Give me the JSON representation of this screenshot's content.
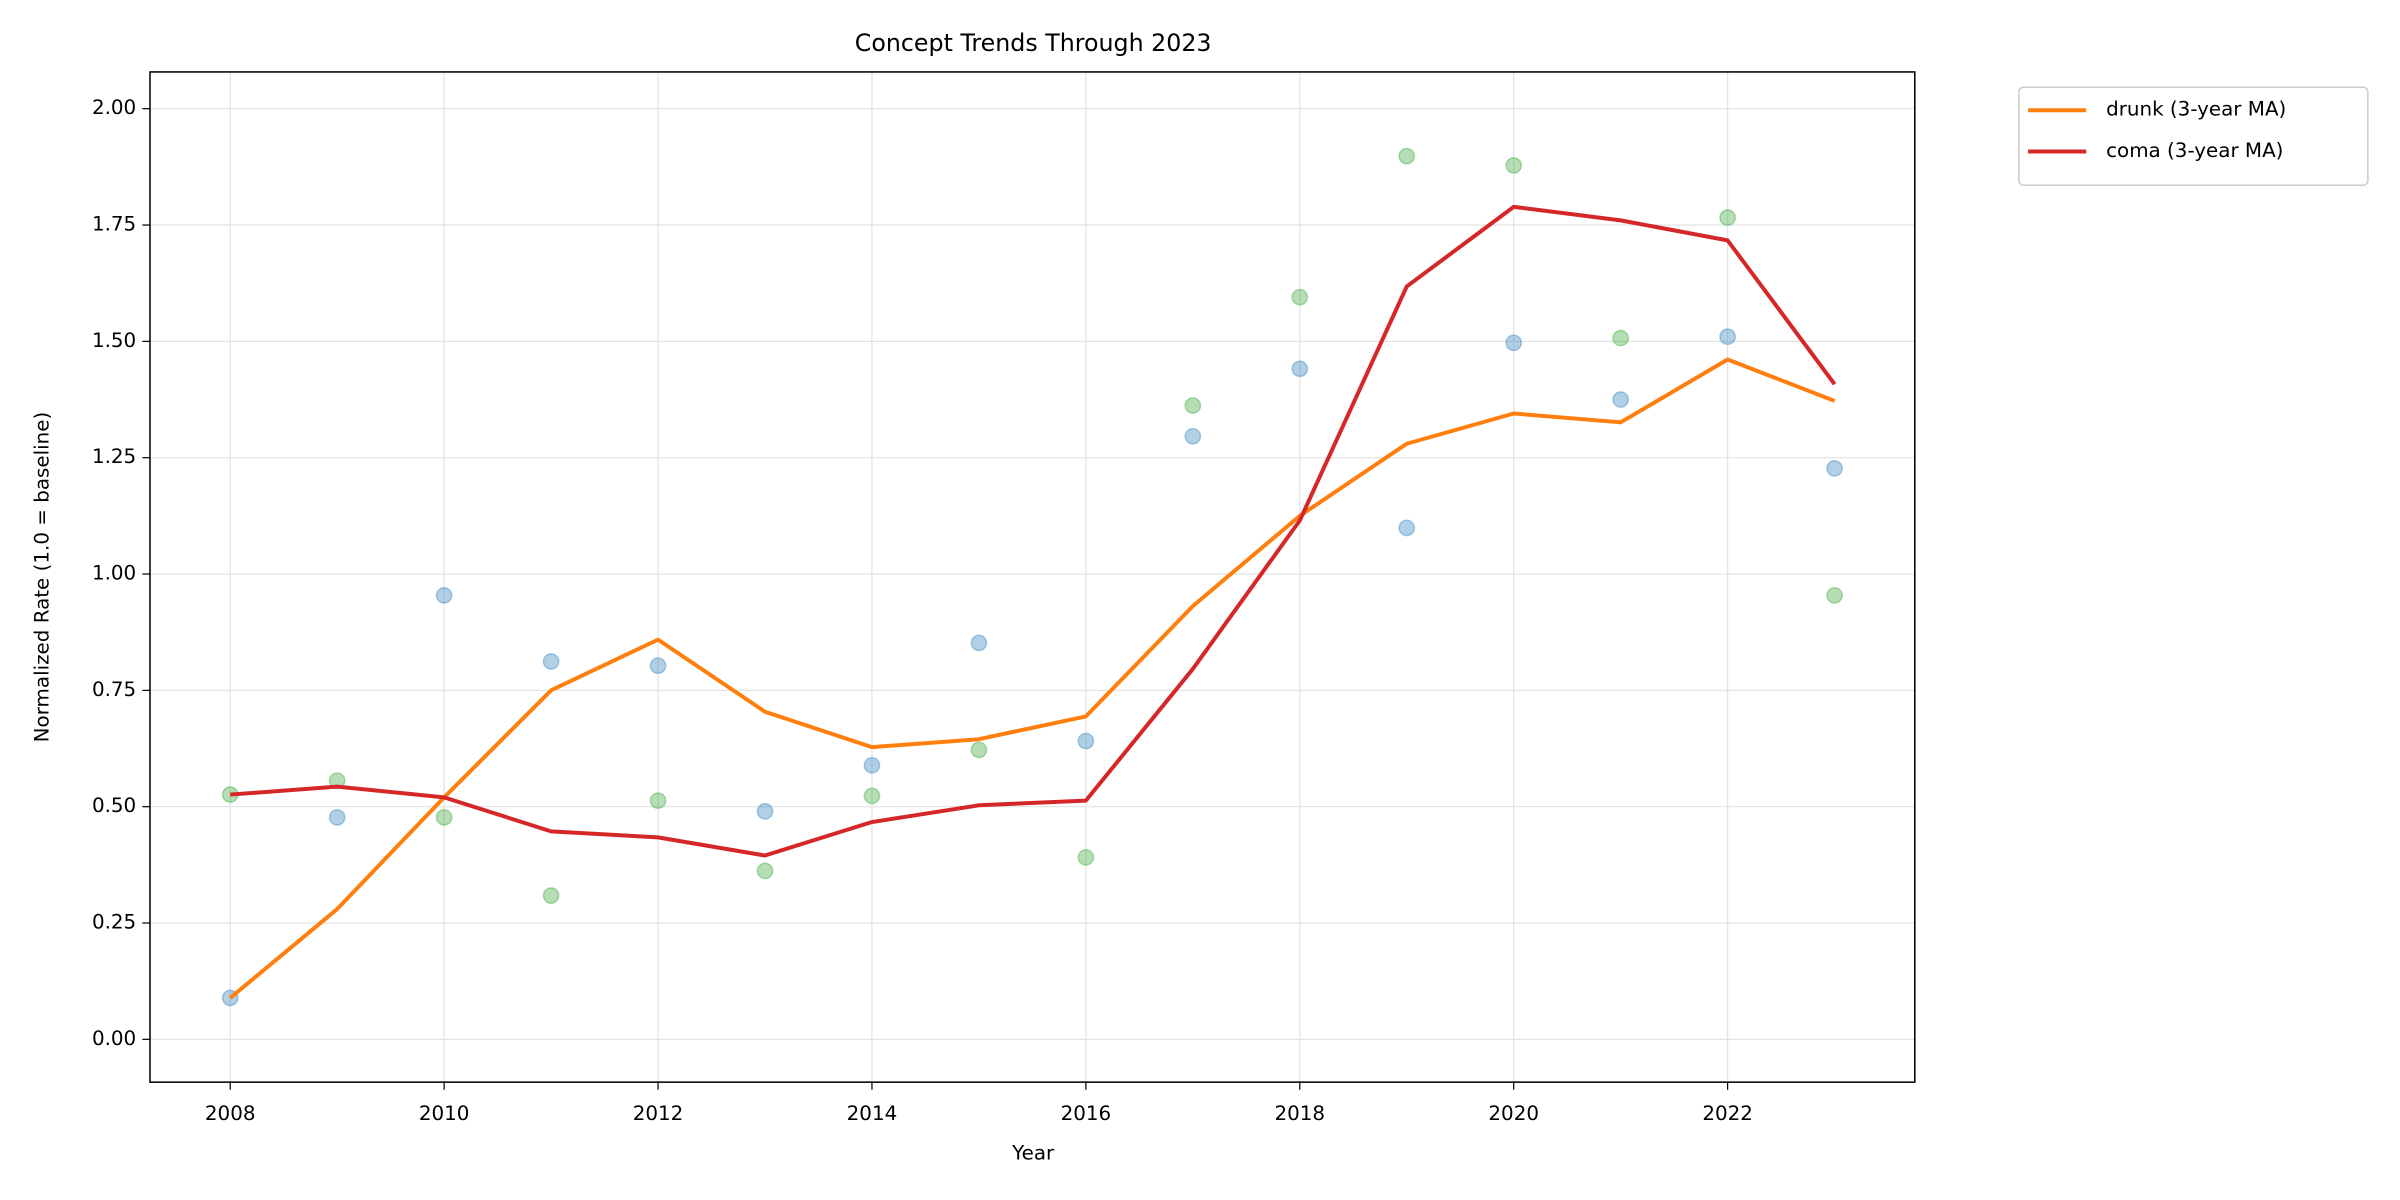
{
  "chart_data": {
    "type": "line",
    "title": "Concept Trends Through 2023",
    "x_label": "Year",
    "y_label": "Normalized Rate (1.0 = baseline)",
    "x": [
      2008,
      2009,
      2010,
      2011,
      2012,
      2013,
      2014,
      2015,
      2016,
      2017,
      2018,
      2019,
      2020,
      2021,
      2022,
      2023
    ],
    "series": [
      {
        "style": "markers",
        "color": "#1f77b4",
        "values": [
          0.089,
          0.477,
          0.954,
          0.812,
          0.803,
          0.49,
          0.589,
          0.852,
          0.641,
          1.296,
          1.441,
          1.099,
          1.497,
          1.375,
          1.51,
          1.227
        ]
      },
      {
        "style": "markers",
        "color": "#2ca02c",
        "values": [
          0.526,
          0.556,
          0.477,
          0.309,
          0.513,
          0.362,
          0.523,
          0.622,
          0.391,
          1.362,
          1.595,
          1.898,
          1.878,
          1.507,
          1.766,
          0.954
        ]
      },
      {
        "name": "drunk (3-year MA)",
        "style": "line",
        "color": "#ff7f0e",
        "values": [
          0.089,
          0.28,
          0.52,
          0.75,
          0.859,
          0.704,
          0.628,
          0.645,
          0.694,
          0.931,
          1.125,
          1.28,
          1.345,
          1.326,
          1.461,
          1.372
        ]
      },
      {
        "name": "coma (3-year MA)",
        "style": "line",
        "color": "#d62728",
        "values": [
          0.526,
          0.543,
          0.52,
          0.447,
          0.434,
          0.395,
          0.467,
          0.503,
          0.513,
          0.796,
          1.115,
          1.618,
          1.789,
          1.76,
          1.717,
          1.408
        ]
      }
    ],
    "xlim": [
      2007.25,
      2023.75
    ],
    "ylim": [
      -0.092,
      2.079
    ],
    "xticks": [
      2008,
      2010,
      2012,
      2014,
      2016,
      2018,
      2020,
      2022
    ],
    "yticks": [
      {
        "value": 0,
        "label": "0.00"
      },
      {
        "value": 0.25,
        "label": "0.25"
      },
      {
        "value": 0.5,
        "label": "0.50"
      },
      {
        "value": 0.75,
        "label": "0.75"
      },
      {
        "value": 1,
        "label": "1.00"
      },
      {
        "value": 1.25,
        "label": "1.25"
      },
      {
        "value": 1.5,
        "label": "1.50"
      },
      {
        "value": 1.75,
        "label": "1.75"
      },
      {
        "value": 2,
        "label": "2.00"
      }
    ],
    "grid": true,
    "legend": "outside upper right"
  }
}
